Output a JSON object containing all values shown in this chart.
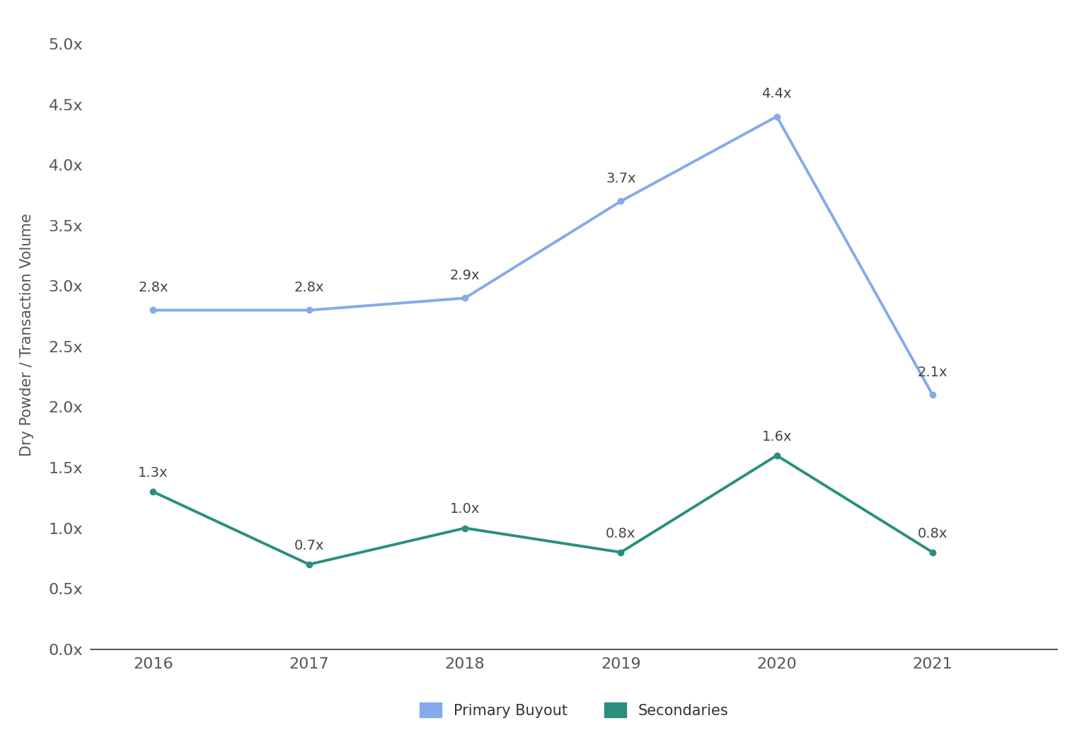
{
  "years": [
    2016,
    2017,
    2018,
    2019,
    2020,
    2021
  ],
  "primary_buyout": [
    2.8,
    2.8,
    2.9,
    3.7,
    4.4,
    2.1
  ],
  "secondaries": [
    1.3,
    0.7,
    1.0,
    0.8,
    1.6,
    0.8
  ],
  "primary_labels": [
    "2.8x",
    "2.8x",
    "2.9x",
    "3.7x",
    "4.4x",
    "2.1x"
  ],
  "secondary_labels": [
    "1.3x",
    "0.7x",
    "1.0x",
    "0.8x",
    "1.6x",
    "0.8x"
  ],
  "primary_label_offsets_x": [
    0,
    0,
    0,
    0,
    0,
    0
  ],
  "primary_label_offsets_y": [
    0.13,
    0.13,
    0.13,
    0.13,
    0.13,
    0.13
  ],
  "secondary_label_offsets_x": [
    0,
    0,
    0,
    0,
    0,
    0
  ],
  "secondary_label_offsets_y": [
    0.1,
    0.1,
    0.1,
    0.1,
    0.1,
    0.1
  ],
  "primary_color": "#85AAEC",
  "secondary_color": "#2A8F7F",
  "ylabel": "Dry Powder / Transaction Volume",
  "yticks": [
    0.0,
    0.5,
    1.0,
    1.5,
    2.0,
    2.5,
    3.0,
    3.5,
    4.0,
    4.5,
    5.0
  ],
  "ytick_labels": [
    "0.0x",
    "0.5x",
    "1.0x",
    "1.5x",
    "2.0x",
    "2.5x",
    "3.0x",
    "3.5x",
    "4.0x",
    "4.5x",
    "5.0x"
  ],
  "ylim": [
    0.0,
    5.2
  ],
  "xlim_left": 2015.6,
  "xlim_right": 2021.8,
  "legend_primary": "Primary Buyout",
  "legend_secondary": "Secondaries",
  "background_color": "#FFFFFF",
  "marker_size": 6,
  "line_width": 2.8,
  "label_fontsize": 14,
  "tick_fontsize": 16,
  "ylabel_fontsize": 15,
  "legend_fontsize": 15,
  "spine_color": "#333333",
  "tick_color": "#555555",
  "label_color": "#444444"
}
